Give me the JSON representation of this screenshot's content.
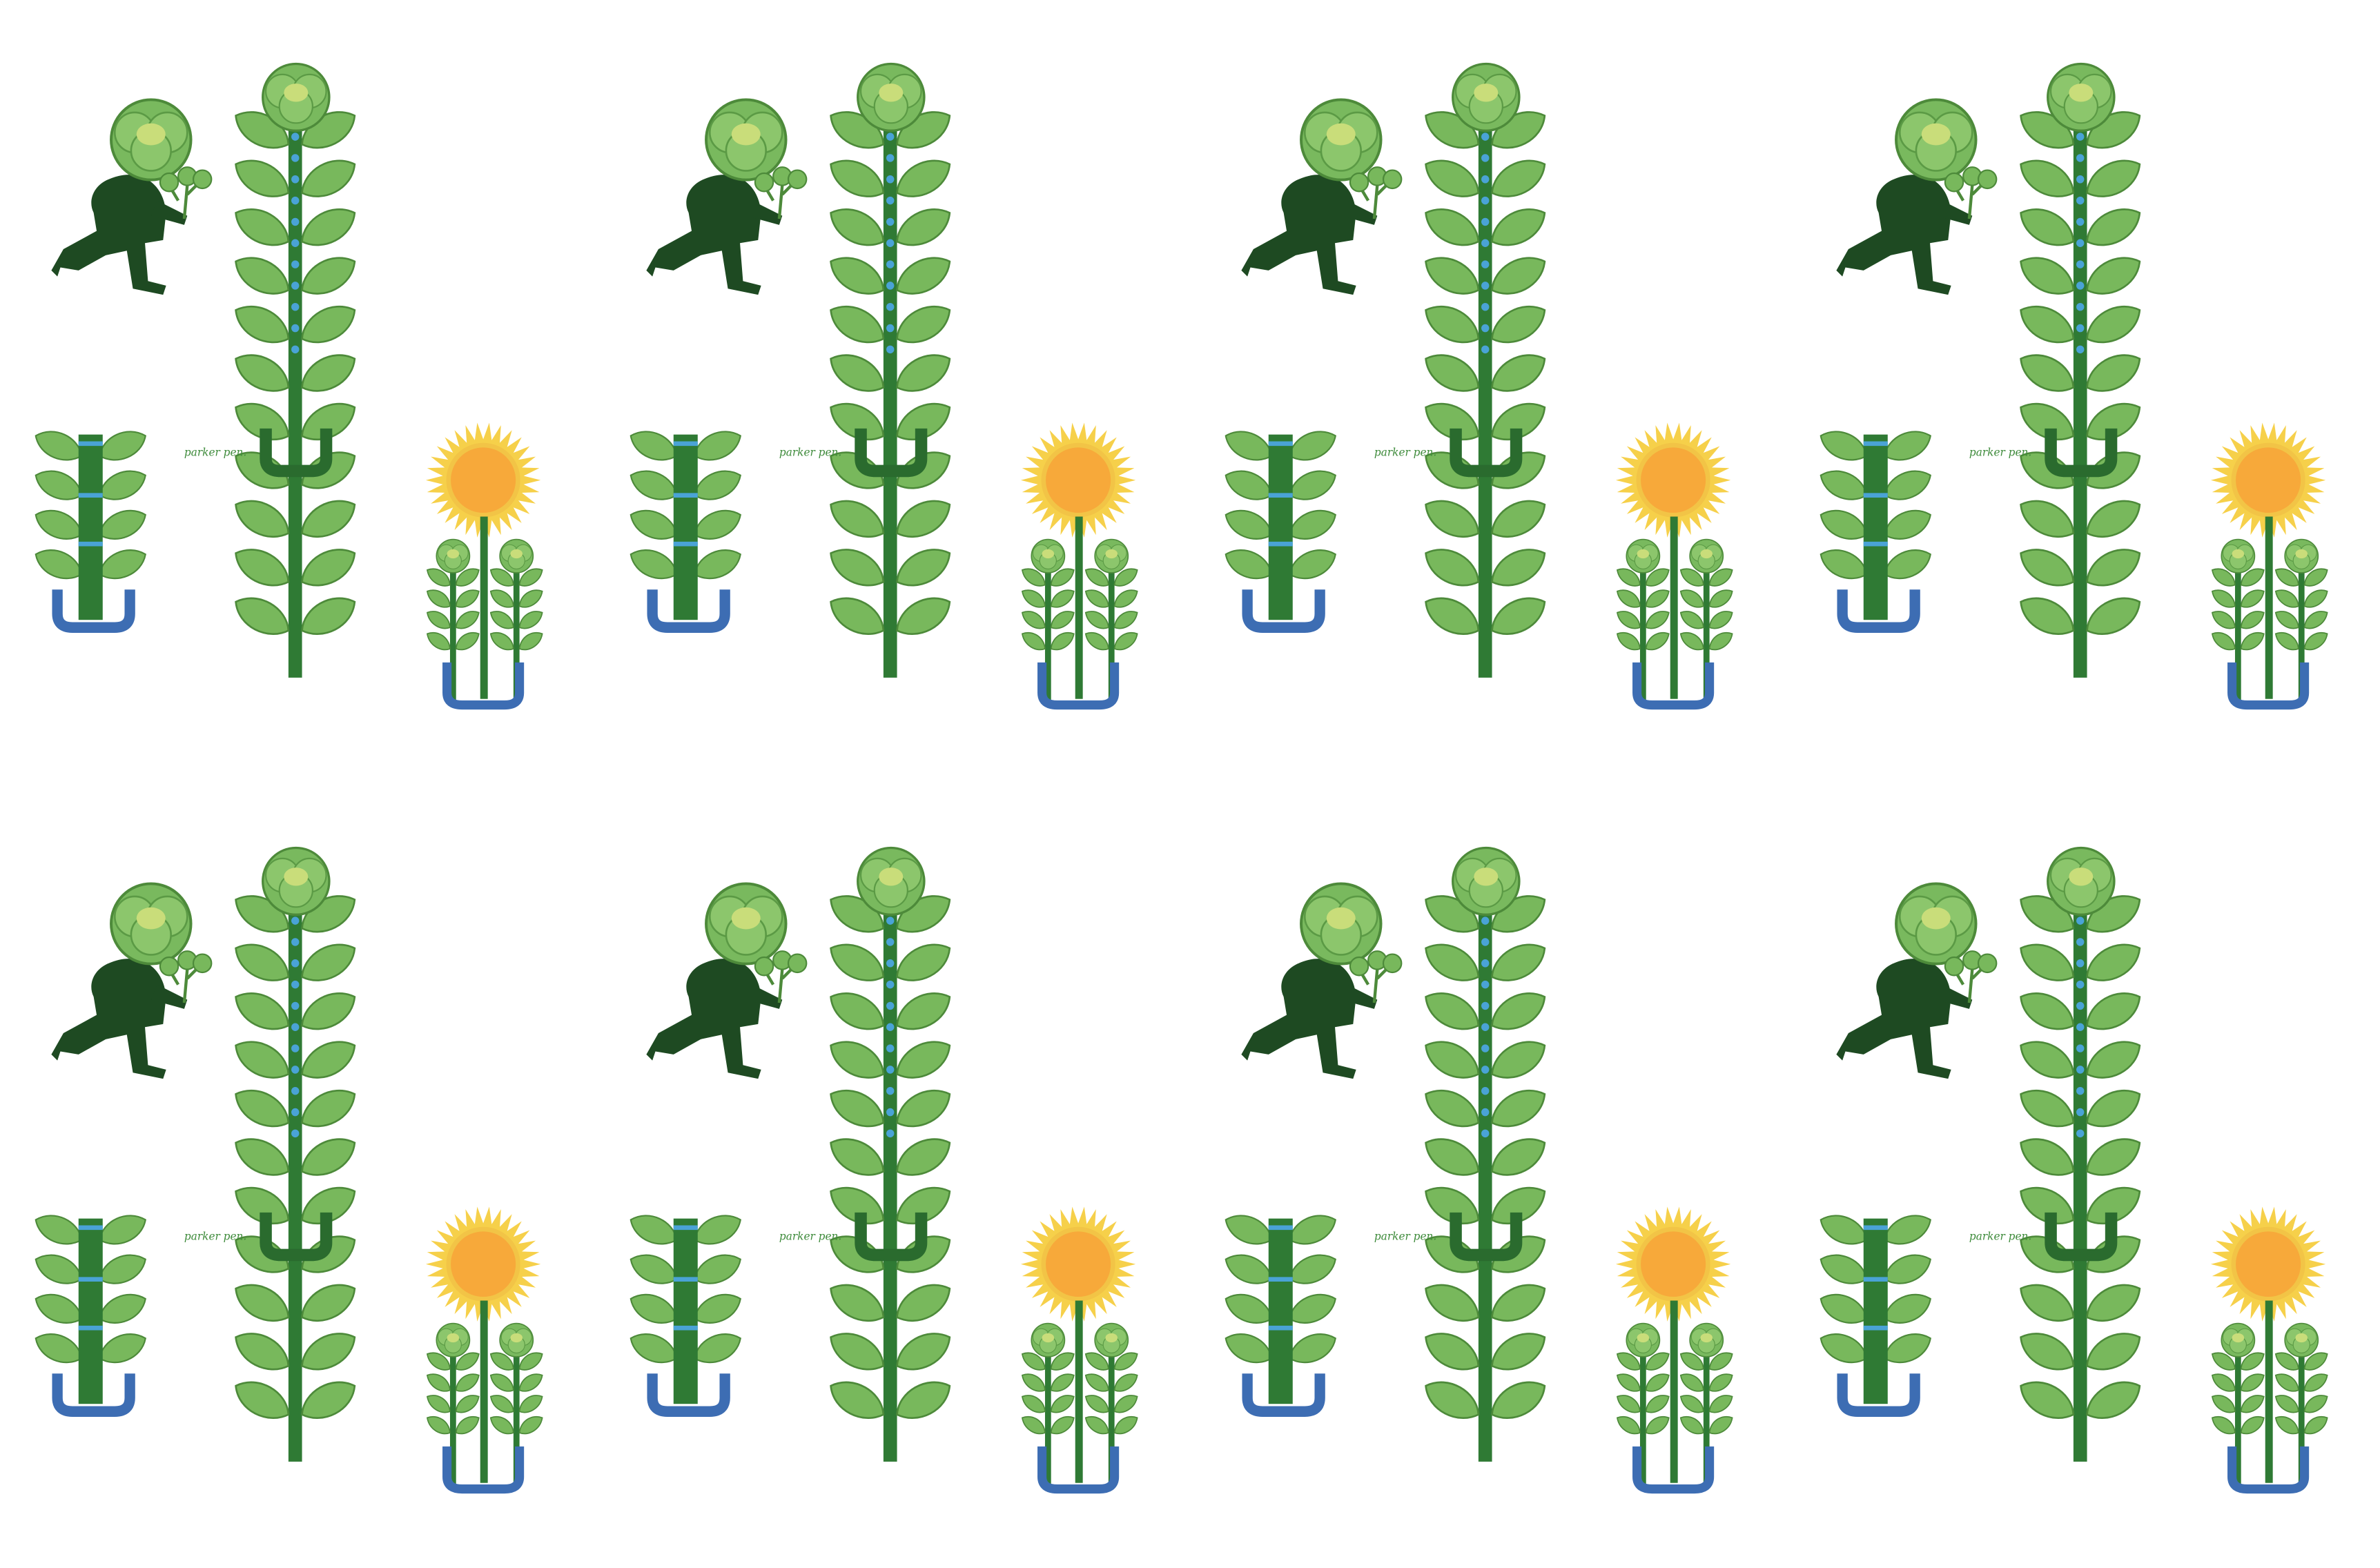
{
  "tiles": [
    {
      "signature": "parker pen."
    },
    {
      "signature": "parker pen."
    },
    {
      "signature": "parker pen."
    },
    {
      "signature": "parker pen."
    },
    {
      "signature": "parker pen."
    },
    {
      "signature": "parker pen."
    },
    {
      "signature": "parker pen."
    },
    {
      "signature": "parker pen."
    }
  ]
}
